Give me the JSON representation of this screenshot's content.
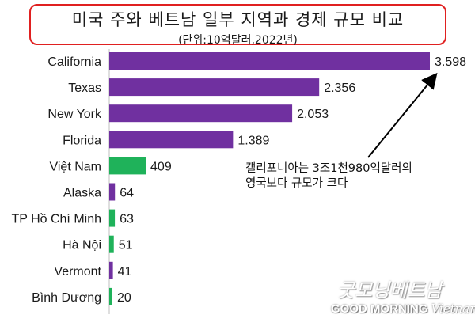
{
  "header": {
    "title": "미국 주와 베트남 일부 지역과 경제 규모 비교",
    "subtitle": "(단위:10억달러,2022년)"
  },
  "chart_data": {
    "type": "bar",
    "orientation": "horizontal",
    "categories": [
      "California",
      "Texas",
      "New York",
      "Florida",
      "Việt Nam",
      "Alaska",
      "TP Hồ Chí Minh",
      "Hà Nội",
      "Vermont",
      "Bình Dương"
    ],
    "values": [
      3598,
      2356,
      2053,
      1389,
      409,
      64,
      63,
      51,
      41,
      20
    ],
    "value_labels": [
      "3.598",
      "2.356",
      "2.053",
      "1.389",
      "409",
      "64",
      "63",
      "51",
      "41",
      "20"
    ],
    "series_colors": [
      "#7030a0",
      "#7030a0",
      "#7030a0",
      "#7030a0",
      "#1fb25a",
      "#7030a0",
      "#1fb25a",
      "#1fb25a",
      "#7030a0",
      "#1fb25a"
    ],
    "xlim": [
      0,
      3598
    ],
    "grid": false,
    "legend": "none"
  },
  "annotation": {
    "text": "캘리포니아는 3조1천980억달러의\n영국보다 규모가 크다"
  },
  "watermark": {
    "script": "굿모닝베트남",
    "text": "GOOD MORNING",
    "text2": "Vietnam"
  }
}
